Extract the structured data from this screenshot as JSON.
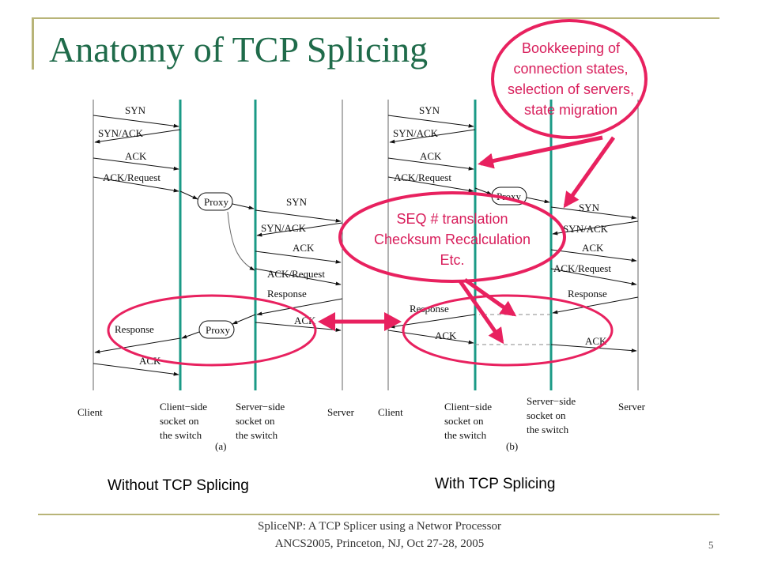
{
  "slide": {
    "title": "Anatomy of TCP Splicing",
    "page_number": "5"
  },
  "footer": {
    "line1": "SpliceNP: A TCP Splicer using a Networ Processor",
    "line2": "ANCS2005, Princeton, NJ, Oct 27-28, 2005"
  },
  "diagram_a": {
    "label": "(a)",
    "caption": "Without TCP Splicing",
    "columns": {
      "client": "Client",
      "client_socket": [
        "Client−side",
        "socket on",
        "the switch"
      ],
      "server_socket": [
        "Server−side",
        "socket on",
        "the switch"
      ],
      "server": "Server"
    },
    "proxy_label": "Proxy",
    "messages": {
      "syn": "SYN",
      "synack": "SYN/ACK",
      "ack": "ACK",
      "ackreq": "ACK/Request",
      "response": "Response"
    }
  },
  "diagram_b": {
    "label": "(b)",
    "caption": "With TCP Splicing",
    "columns": {
      "client": "Client",
      "client_socket": [
        "Client−side",
        "socket on",
        "the switch"
      ],
      "server_socket": [
        "Server−side",
        "socket on",
        "the switch"
      ],
      "server": "Server"
    },
    "proxy_label": "Proxy",
    "messages": {
      "syn": "SYN",
      "synack": "SYN/ACK",
      "ack": "ACK",
      "ackreq": "ACK/Request",
      "response": "Response"
    }
  },
  "callouts": {
    "bookkeeping": [
      "Bookkeeping of",
      "connection states,",
      "selection of servers,",
      "state migration"
    ],
    "seq": [
      "SEQ # translation",
      "Checksum Recalculation",
      "Etc."
    ]
  },
  "colors": {
    "title": "#1f6b4a",
    "accent": "#e8215f",
    "socket_line": "#1a9a86",
    "frame": "#b8b478"
  }
}
